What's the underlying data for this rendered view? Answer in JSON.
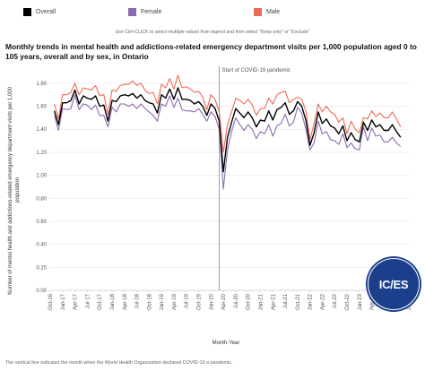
{
  "legend": {
    "items": [
      {
        "label": "Overall",
        "color": "#000000"
      },
      {
        "label": "Female",
        "color": "#8c6bb1"
      },
      {
        "label": "Male",
        "color": "#ec6b56"
      }
    ]
  },
  "instruction": "Use Ctrl+CLICK to select multiple values from legend and then select \"Keep only\" or \"Exclude\"",
  "title": "Monthly trends in mental health and addictions-related emergency department visits per 1,000 population aged 0 to 105 years, overall and by sex, in Ontario",
  "footnote": "The vertical line indicates the month when the World Health Organization declared COVID-19 a pandemic.",
  "logo": {
    "text": "IC/ES"
  },
  "chart_data": {
    "type": "line",
    "xlabel": "Month-Year",
    "ylabel": "Number of mental health and addictions-related emergency department visits per 1,000 population",
    "ylim": [
      0,
      1.9
    ],
    "yticks": [
      0.0,
      0.2,
      0.4,
      0.6,
      0.8,
      1.0,
      1.2,
      1.4,
      1.6,
      1.8
    ],
    "ytick_labels": [
      "0.00",
      "0.20",
      "0.40",
      "0.60",
      "0.80",
      "1.00",
      "1.20",
      "1.40",
      "1.60",
      "1.80"
    ],
    "x_start": "2016-10",
    "x_end": "2024-01",
    "xtick_labels": [
      "Oct-16",
      "Jan-17",
      "Apr-17",
      "Jul-17",
      "Oct-17",
      "Jan-18",
      "Apr-18",
      "Jul-18",
      "Oct-18",
      "Jan-19",
      "Apr-19",
      "Jul-19",
      "Oct-19",
      "Jan-20",
      "Apr-20",
      "Jul-20",
      "Oct-20",
      "Jan-21",
      "Apr-21",
      "Jul-21",
      "Oct-21",
      "Jan-22",
      "Apr-22",
      "Jul-22",
      "Oct-22",
      "Jan-23",
      "Apr-23",
      "Jul-23",
      "Oct-23",
      "Jan-24"
    ],
    "months": [
      "2016-11",
      "2016-12",
      "2017-01",
      "2017-02",
      "2017-03",
      "2017-04",
      "2017-05",
      "2017-06",
      "2017-07",
      "2017-08",
      "2017-09",
      "2017-10",
      "2017-11",
      "2017-12",
      "2018-01",
      "2018-02",
      "2018-03",
      "2018-04",
      "2018-05",
      "2018-06",
      "2018-07",
      "2018-08",
      "2018-09",
      "2018-10",
      "2018-11",
      "2018-12",
      "2019-01",
      "2019-02",
      "2019-03",
      "2019-04",
      "2019-05",
      "2019-06",
      "2019-07",
      "2019-08",
      "2019-09",
      "2019-10",
      "2019-11",
      "2019-12",
      "2020-01",
      "2020-02",
      "2020-03",
      "2020-04",
      "2020-05",
      "2020-06",
      "2020-07",
      "2020-08",
      "2020-09",
      "2020-10",
      "2020-11",
      "2020-12",
      "2021-01",
      "2021-02",
      "2021-03",
      "2021-04",
      "2021-05",
      "2021-06",
      "2021-07",
      "2021-08",
      "2021-09",
      "2021-10",
      "2021-11",
      "2021-12",
      "2022-01",
      "2022-02",
      "2022-03",
      "2022-04",
      "2022-05",
      "2022-06",
      "2022-07",
      "2022-08",
      "2022-09",
      "2022-10",
      "2022-11",
      "2022-12",
      "2023-01",
      "2023-02",
      "2023-03",
      "2023-04",
      "2023-05",
      "2023-06",
      "2023-07",
      "2023-08",
      "2023-09",
      "2023-10",
      "2023-11"
    ],
    "series": [
      {
        "name": "Overall",
        "color": "#000000",
        "values": [
          1.56,
          1.44,
          1.63,
          1.63,
          1.65,
          1.74,
          1.62,
          1.69,
          1.67,
          1.66,
          1.69,
          1.6,
          1.61,
          1.47,
          1.65,
          1.64,
          1.69,
          1.7,
          1.69,
          1.71,
          1.67,
          1.7,
          1.65,
          1.63,
          1.62,
          1.54,
          1.7,
          1.67,
          1.75,
          1.66,
          1.76,
          1.66,
          1.66,
          1.65,
          1.62,
          1.64,
          1.6,
          1.52,
          1.62,
          1.58,
          1.47,
          1.03,
          1.33,
          1.46,
          1.58,
          1.54,
          1.5,
          1.55,
          1.5,
          1.42,
          1.48,
          1.47,
          1.56,
          1.48,
          1.57,
          1.59,
          1.63,
          1.53,
          1.56,
          1.64,
          1.6,
          1.48,
          1.26,
          1.37,
          1.55,
          1.45,
          1.49,
          1.43,
          1.41,
          1.36,
          1.43,
          1.3,
          1.37,
          1.31,
          1.29,
          1.46,
          1.39,
          1.48,
          1.42,
          1.44,
          1.39,
          1.39,
          1.44,
          1.38,
          1.33
        ]
      },
      {
        "name": "Female",
        "color": "#8c6bb1",
        "values": [
          1.52,
          1.39,
          1.58,
          1.57,
          1.58,
          1.7,
          1.57,
          1.62,
          1.61,
          1.57,
          1.61,
          1.52,
          1.52,
          1.42,
          1.59,
          1.55,
          1.62,
          1.62,
          1.6,
          1.62,
          1.58,
          1.62,
          1.58,
          1.55,
          1.52,
          1.47,
          1.62,
          1.6,
          1.69,
          1.59,
          1.67,
          1.57,
          1.56,
          1.56,
          1.55,
          1.58,
          1.53,
          1.47,
          1.55,
          1.51,
          1.4,
          0.88,
          1.22,
          1.38,
          1.5,
          1.44,
          1.39,
          1.44,
          1.4,
          1.32,
          1.38,
          1.36,
          1.44,
          1.34,
          1.43,
          1.45,
          1.53,
          1.43,
          1.46,
          1.59,
          1.54,
          1.4,
          1.22,
          1.28,
          1.47,
          1.36,
          1.38,
          1.31,
          1.3,
          1.27,
          1.36,
          1.24,
          1.28,
          1.23,
          1.22,
          1.42,
          1.3,
          1.41,
          1.34,
          1.35,
          1.29,
          1.29,
          1.33,
          1.28,
          1.25
        ]
      },
      {
        "name": "Male",
        "color": "#ec6b56",
        "values": [
          1.62,
          1.49,
          1.7,
          1.7,
          1.72,
          1.8,
          1.7,
          1.76,
          1.75,
          1.74,
          1.78,
          1.69,
          1.7,
          1.53,
          1.74,
          1.73,
          1.78,
          1.79,
          1.79,
          1.82,
          1.78,
          1.8,
          1.74,
          1.71,
          1.72,
          1.62,
          1.79,
          1.76,
          1.84,
          1.75,
          1.87,
          1.76,
          1.77,
          1.75,
          1.72,
          1.73,
          1.68,
          1.57,
          1.7,
          1.66,
          1.55,
          1.2,
          1.44,
          1.55,
          1.67,
          1.65,
          1.62,
          1.66,
          1.61,
          1.52,
          1.58,
          1.58,
          1.67,
          1.62,
          1.7,
          1.72,
          1.73,
          1.63,
          1.66,
          1.68,
          1.66,
          1.56,
          1.31,
          1.45,
          1.62,
          1.55,
          1.6,
          1.55,
          1.53,
          1.46,
          1.5,
          1.36,
          1.47,
          1.4,
          1.37,
          1.5,
          1.49,
          1.56,
          1.51,
          1.54,
          1.5,
          1.5,
          1.55,
          1.49,
          1.42
        ]
      }
    ],
    "annotation": {
      "x": "2020-03",
      "label": "Start of COVID-19 pandemic"
    },
    "grid": "horizontal",
    "legend_position": "top"
  }
}
